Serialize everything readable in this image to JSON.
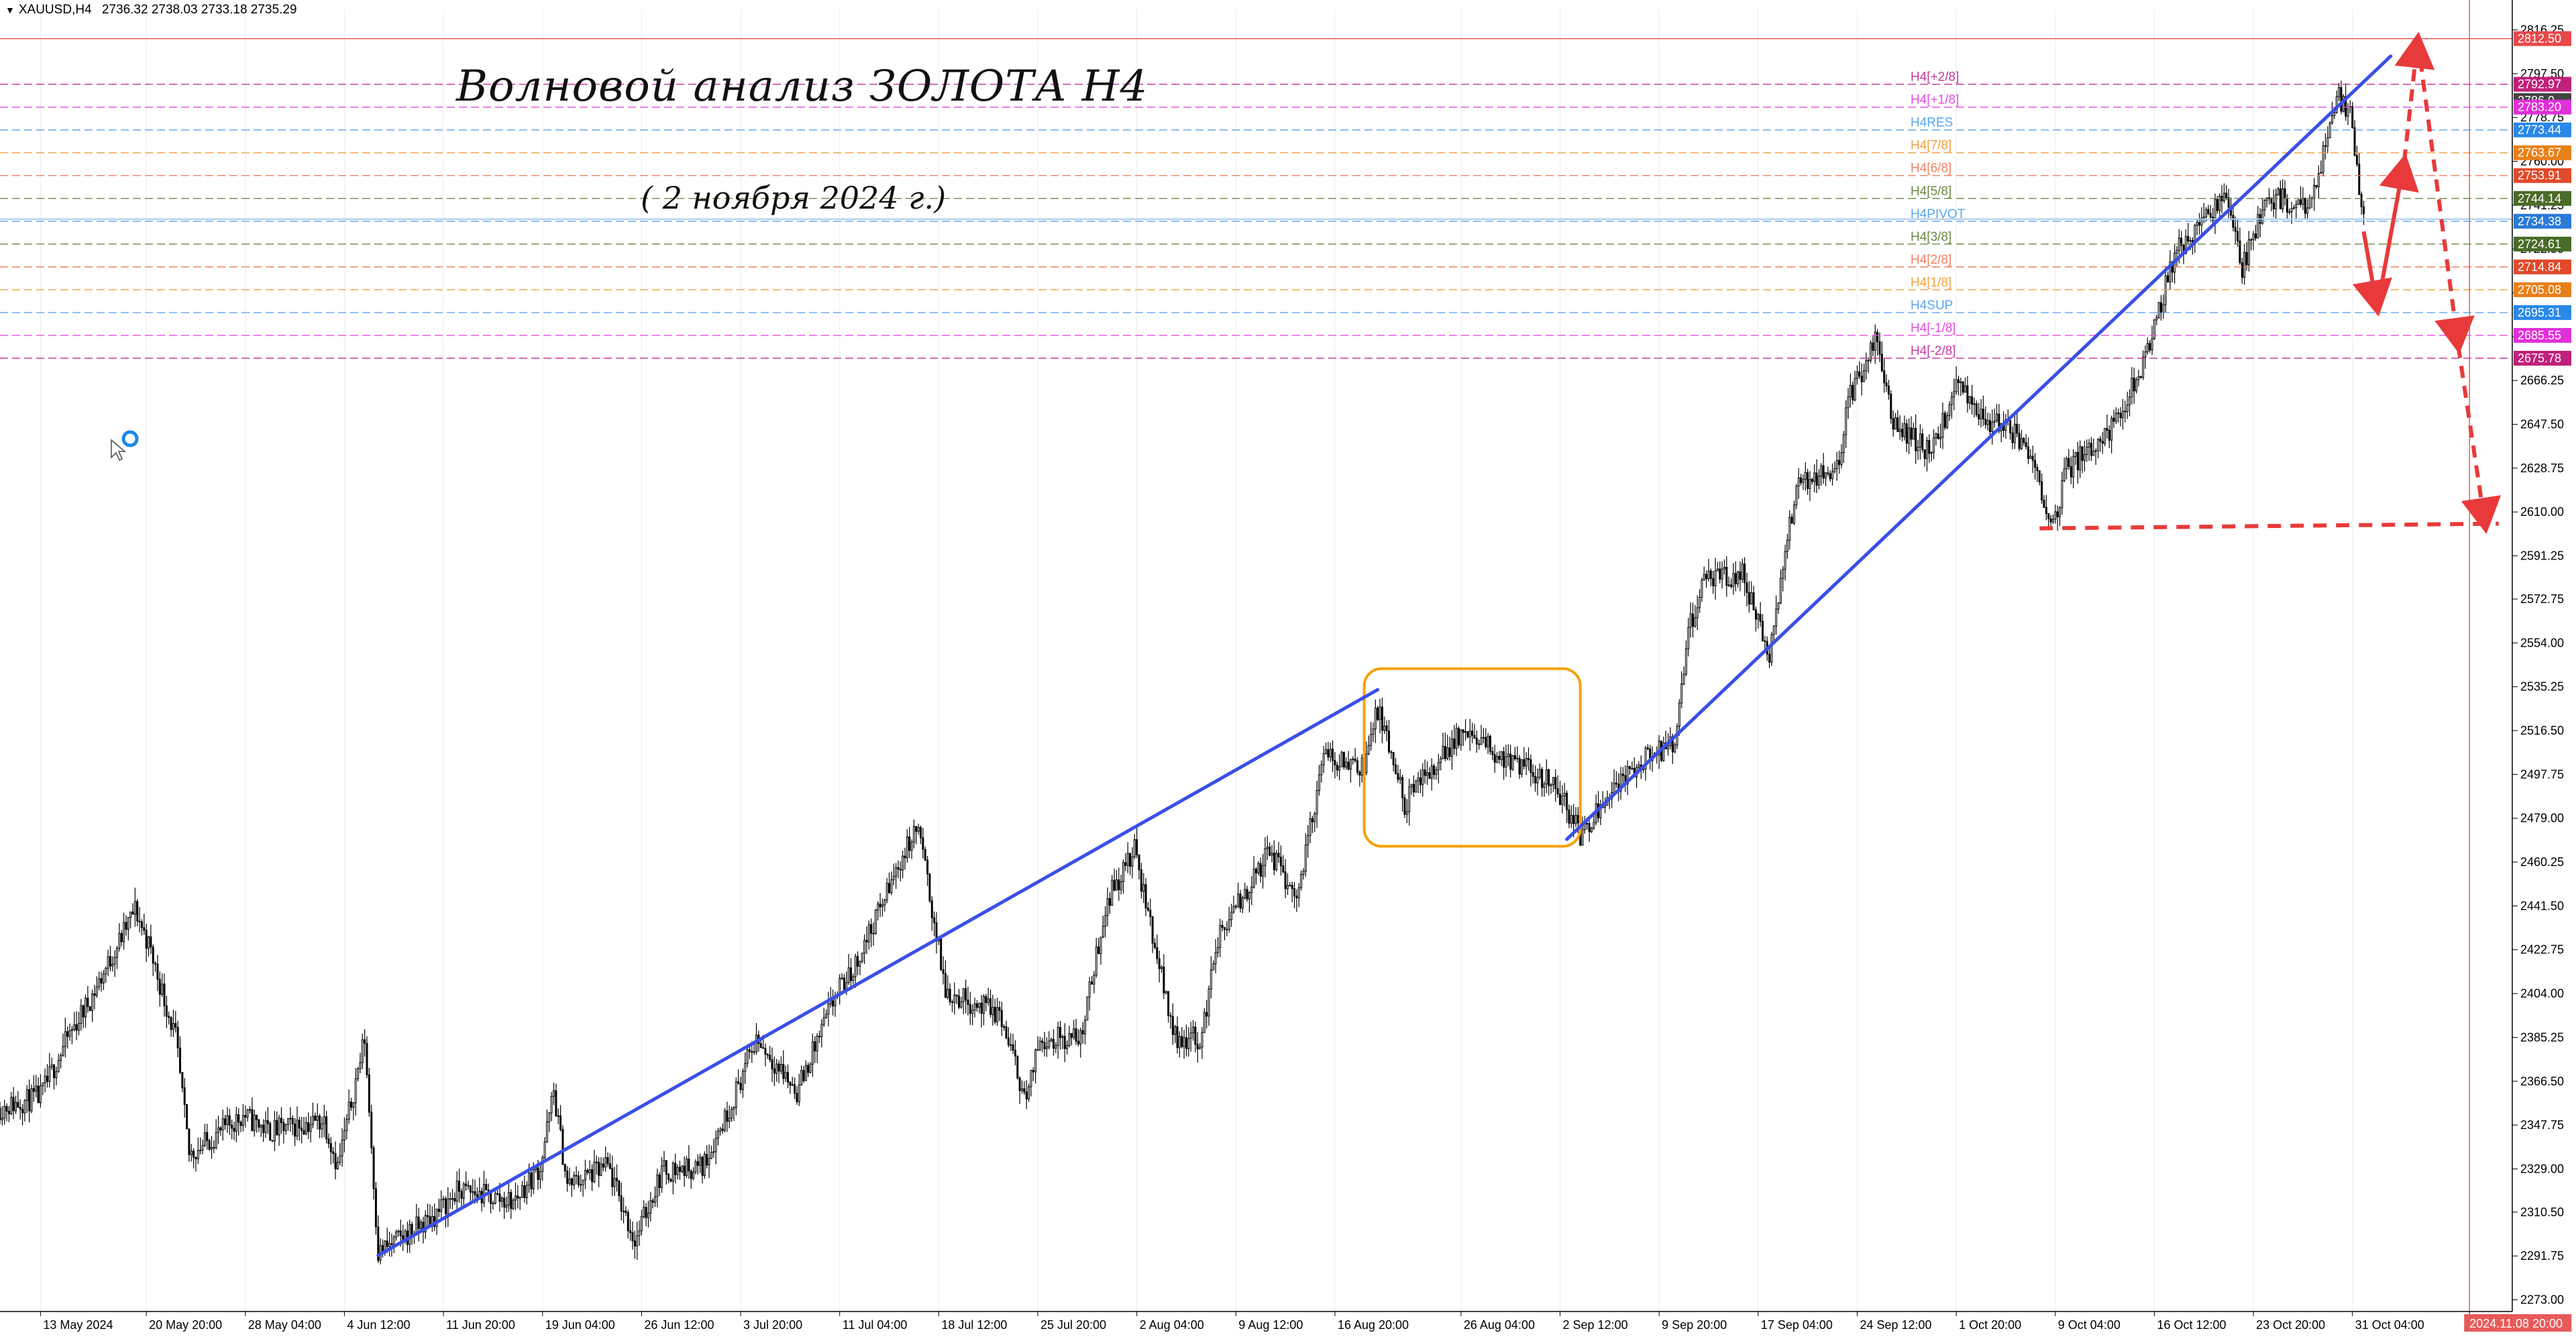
{
  "header": {
    "symbol": "XAUUSD,H4",
    "open": "2736.32",
    "high": "2738.03",
    "low": "2733.18",
    "close": "2735.29"
  },
  "annotations": {
    "title": "Волновой анализ ЗОЛОТА H4",
    "date": "( 2 ноября 2024 г.)"
  },
  "colors": {
    "candle": "#000000",
    "trendline": "#3a4fe6",
    "forecast": "#e83a3a",
    "box": "#f2a20c",
    "vline": "#e85a5a",
    "current_price_line": "#aac8e6",
    "axis_text": "#000000"
  },
  "chart_data": {
    "type": "candlestick",
    "y_range": [
      2268,
      2825
    ],
    "x_range": [
      "2024-05-10",
      "2024-11-12"
    ],
    "y_ticks": [
      "2816.25",
      "2797.50",
      "2778.75",
      "2760.00",
      "2741.25",
      "2722.50",
      "2703.75",
      "2685.00",
      "2666.25",
      "2647.50",
      "2628.75",
      "2610.00",
      "2591.25",
      "2572.75",
      "2554.00",
      "2535.25",
      "2516.50",
      "2497.75",
      "2479.00",
      "2460.25",
      "2441.50",
      "2422.75",
      "2404.00",
      "2385.25",
      "2366.50",
      "2347.75",
      "2329.00",
      "2310.50",
      "2291.75",
      "2273.00"
    ],
    "x_tick_labels": [
      {
        "label": "13 May 2024",
        "date": "2024-05-13"
      },
      {
        "label": "20 May 20:00",
        "date": "2024-05-20T20:00"
      },
      {
        "label": "28 May 04:00",
        "date": "2024-05-28T04:00"
      },
      {
        "label": "4 Jun 12:00",
        "date": "2024-06-04T12:00"
      },
      {
        "label": "11 Jun 20:00",
        "date": "2024-06-11T20:00"
      },
      {
        "label": "19 Jun 04:00",
        "date": "2024-06-19T04:00"
      },
      {
        "label": "26 Jun 12:00",
        "date": "2024-06-26T12:00"
      },
      {
        "label": "3 Jul 20:00",
        "date": "2024-07-03T20:00"
      },
      {
        "label": "11 Jul 04:00",
        "date": "2024-07-11T04:00"
      },
      {
        "label": "18 Jul 12:00",
        "date": "2024-07-18T12:00"
      },
      {
        "label": "25 Jul 20:00",
        "date": "2024-07-25T20:00"
      },
      {
        "label": "2 Aug 04:00",
        "date": "2024-08-02T04:00"
      },
      {
        "label": "9 Aug 12:00",
        "date": "2024-08-09T12:00"
      },
      {
        "label": "16 Aug 20:00",
        "date": "2024-08-16T20:00"
      },
      {
        "label": "26 Aug 04:00",
        "date": "2024-08-26T04:00"
      },
      {
        "label": "2 Sep 12:00",
        "date": "2024-09-02T12:00"
      },
      {
        "label": "9 Sep 20:00",
        "date": "2024-09-09T20:00"
      },
      {
        "label": "17 Sep 04:00",
        "date": "2024-09-17T04:00"
      },
      {
        "label": "24 Sep 12:00",
        "date": "2024-09-24T12:00"
      },
      {
        "label": "1 Oct 20:00",
        "date": "2024-10-01T20:00"
      },
      {
        "label": "9 Oct 04:00",
        "date": "2024-10-09T04:00"
      },
      {
        "label": "16 Oct 12:00",
        "date": "2024-10-16T12:00"
      },
      {
        "label": "23 Oct 20:00",
        "date": "2024-10-23T20:00"
      },
      {
        "label": "31 Oct 04:00",
        "date": "2024-10-31T04:00"
      },
      {
        "label": "2024.11.08 20:00",
        "date": "2024-11-08T20:00",
        "highlight": true
      }
    ],
    "price_path": [
      [
        "2024-05-10",
        2355
      ],
      [
        "2024-05-13",
        2360
      ],
      [
        "2024-05-15",
        2385
      ],
      [
        "2024-05-17",
        2405
      ],
      [
        "2024-05-20",
        2440
      ],
      [
        "2024-05-21",
        2425
      ],
      [
        "2024-05-23",
        2385
      ],
      [
        "2024-05-24",
        2335
      ],
      [
        "2024-05-28",
        2352
      ],
      [
        "2024-05-30",
        2345
      ],
      [
        "2024-06-03",
        2350
      ],
      [
        "2024-06-04",
        2330
      ],
      [
        "2024-06-06",
        2385
      ],
      [
        "2024-06-07",
        2293
      ],
      [
        "2024-06-11",
        2308
      ],
      [
        "2024-06-13",
        2320
      ],
      [
        "2024-06-17",
        2315
      ],
      [
        "2024-06-19",
        2330
      ],
      [
        "2024-06-20",
        2362
      ],
      [
        "2024-06-21",
        2322
      ],
      [
        "2024-06-24",
        2330
      ],
      [
        "2024-06-26",
        2298
      ],
      [
        "2024-06-28",
        2328
      ],
      [
        "2024-07-01",
        2330
      ],
      [
        "2024-07-03",
        2355
      ],
      [
        "2024-07-05",
        2385
      ],
      [
        "2024-07-08",
        2362
      ],
      [
        "2024-07-11",
        2405
      ],
      [
        "2024-07-12",
        2412
      ],
      [
        "2024-07-16",
        2465
      ],
      [
        "2024-07-17",
        2475
      ],
      [
        "2024-07-19",
        2405
      ],
      [
        "2024-07-23",
        2395
      ],
      [
        "2024-07-25",
        2358
      ],
      [
        "2024-07-26",
        2385
      ],
      [
        "2024-07-29",
        2385
      ],
      [
        "2024-07-31",
        2445
      ],
      [
        "2024-08-02",
        2465
      ],
      [
        "2024-08-05",
        2385
      ],
      [
        "2024-08-07",
        2385
      ],
      [
        "2024-08-08",
        2425
      ],
      [
        "2024-08-12",
        2465
      ],
      [
        "2024-08-14",
        2445
      ],
      [
        "2024-08-16",
        2505
      ],
      [
        "2024-08-19",
        2502
      ],
      [
        "2024-08-20",
        2525
      ],
      [
        "2024-08-22",
        2485
      ],
      [
        "2024-08-26",
        2515
      ],
      [
        "2024-08-28",
        2510
      ],
      [
        "2024-08-30",
        2502
      ],
      [
        "2024-09-02",
        2495
      ],
      [
        "2024-09-04",
        2472
      ],
      [
        "2024-09-06",
        2490
      ],
      [
        "2024-09-09",
        2505
      ],
      [
        "2024-09-11",
        2510
      ],
      [
        "2024-09-12",
        2558
      ],
      [
        "2024-09-13",
        2580
      ],
      [
        "2024-09-16",
        2583
      ],
      [
        "2024-09-18",
        2548
      ],
      [
        "2024-09-20",
        2622
      ],
      [
        "2024-09-23",
        2630
      ],
      [
        "2024-09-24",
        2660
      ],
      [
        "2024-09-26",
        2685
      ],
      [
        "2024-09-27",
        2650
      ],
      [
        "2024-09-30",
        2635
      ],
      [
        "2024-10-02",
        2665
      ],
      [
        "2024-10-04",
        2650
      ],
      [
        "2024-10-07",
        2640
      ],
      [
        "2024-10-09",
        2605
      ],
      [
        "2024-10-10",
        2628
      ],
      [
        "2024-10-14",
        2650
      ],
      [
        "2024-10-16",
        2680
      ],
      [
        "2024-10-18",
        2720
      ],
      [
        "2024-10-21",
        2740
      ],
      [
        "2024-10-22",
        2745
      ],
      [
        "2024-10-23",
        2715
      ],
      [
        "2024-10-25",
        2745
      ],
      [
        "2024-10-28",
        2740
      ],
      [
        "2024-10-30",
        2788
      ],
      [
        "2024-10-31",
        2780
      ],
      [
        "2024-11-01",
        2735
      ]
    ],
    "murray_levels": [
      {
        "value": 2812.5,
        "label_text": "",
        "tag": "2812.50",
        "color": "#e8484a",
        "tag_color": "#e8484a",
        "dash": "solid"
      },
      {
        "value": 2792.97,
        "label_text": "H4[+2/8]",
        "tag": "2792.97",
        "color": "#c63aa0",
        "tag_color": "#c0207a",
        "dash": "dashed"
      },
      {
        "value": 2786.0,
        "label_text": "",
        "tag": "2786.0",
        "color": "#bbbbbb",
        "tag_color": "#444444",
        "dash": "none"
      },
      {
        "value": 2783.2,
        "label_text": "H4[+1/8]",
        "tag": "2783.20",
        "color": "#e64ae0",
        "tag_color": "#e030d8",
        "dash": "dashed"
      },
      {
        "value": 2773.44,
        "label_text": "H4RES",
        "tag": "2773.44",
        "color": "#5aa5f0",
        "tag_color": "#2a88e8",
        "dash": "dashed"
      },
      {
        "value": 2763.67,
        "label_text": "H4[7/8]",
        "tag": "2763.67",
        "color": "#f2a040",
        "tag_color": "#e8801a",
        "dash": "dashed"
      },
      {
        "value": 2753.91,
        "label_text": "H4[6/8]",
        "tag": "2753.91",
        "color": "#f08060",
        "tag_color": "#e04a2a",
        "dash": "dashed"
      },
      {
        "value": 2744.14,
        "label_text": "H4[5/8]",
        "tag": "2744.14",
        "color": "#6a8a40",
        "tag_color": "#4a6a28",
        "dash": "dashed"
      },
      {
        "value": 2734.38,
        "label_text": "H4PIVOT",
        "tag": "2734.38",
        "color": "#5aa5f0",
        "tag_color": "#2a7ad8",
        "dash": "dashed"
      },
      {
        "value": 2724.61,
        "label_text": "H4[3/8]",
        "tag": "2724.61",
        "color": "#6a8a40",
        "tag_color": "#4a6a28",
        "dash": "dashed"
      },
      {
        "value": 2714.84,
        "label_text": "H4[2/8]",
        "tag": "2714.84",
        "color": "#f08060",
        "tag_color": "#e04a2a",
        "dash": "dashed"
      },
      {
        "value": 2705.08,
        "label_text": "H4[1/8]",
        "tag": "2705.08",
        "color": "#f2a040",
        "tag_color": "#e8801a",
        "dash": "dashed"
      },
      {
        "value": 2695.31,
        "label_text": "H4SUP",
        "tag": "2695.31",
        "color": "#5aa5f0",
        "tag_color": "#2a88e8",
        "dash": "dashed"
      },
      {
        "value": 2685.55,
        "label_text": "H4[-1/8]",
        "tag": "2685.55",
        "color": "#e64ae0",
        "tag_color": "#e030d8",
        "dash": "dashed"
      },
      {
        "value": 2675.78,
        "label_text": "H4[-2/8]",
        "tag": "2675.78",
        "color": "#c63aa0",
        "tag_color": "#c0207a",
        "dash": "dashed"
      }
    ],
    "current_price": 2735.29,
    "trendlines": [
      {
        "name": "trendline-1",
        "points": [
          [
            "2024-06-07",
            2292
          ],
          [
            "2024-08-20",
            2534
          ]
        ]
      },
      {
        "name": "trendline-2",
        "points": [
          [
            "2024-09-03",
            2470
          ],
          [
            "2024-11-03",
            2805
          ]
        ]
      }
    ],
    "consolidation_box": {
      "x0": "2024-08-19",
      "x1": "2024-09-04",
      "y0": 2467,
      "y1": 2543
    },
    "forecast_solid": [
      [
        "2024-11-01",
        2730
      ],
      [
        "2024-11-02",
        2697
      ],
      [
        "2024-11-04",
        2760
      ]
    ],
    "forecast_dashed": [
      [
        [
          "2024-11-04",
          2760
        ],
        [
          "2024-11-05",
          2812
        ]
      ],
      [
        [
          "2024-11-05",
          2812
        ],
        [
          "2024-11-08",
          2681
        ]
      ],
      [
        [
          "2024-11-08",
          2681
        ],
        [
          "2024-11-10",
          2604
        ]
      ]
    ],
    "forecast_support_line": [
      [
        "2024-10-08",
        2603
      ],
      [
        "2024-11-11",
        2605
      ]
    ],
    "vertical_line_date": "2024-11-08T20:00"
  }
}
